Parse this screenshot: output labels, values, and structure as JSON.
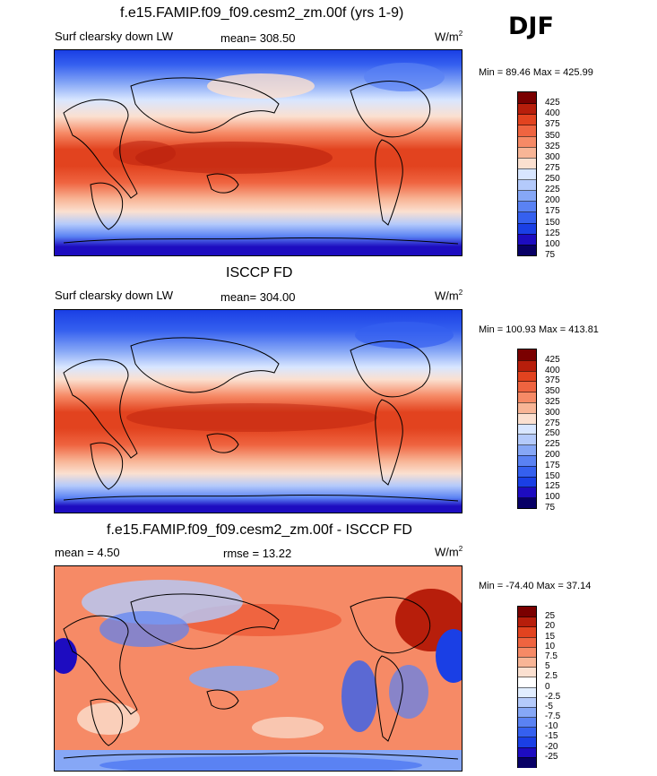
{
  "season": "DJF",
  "panels": [
    {
      "id": "model",
      "title": "f.e15.FAMIP.f09_f09.cesm2_zm.00f (yrs 1-9)",
      "variable": "Surf clearsky down LW",
      "stat_text": "mean= 308.50",
      "units": "W/m",
      "units_exp": "2",
      "minmax": "Min =  89.46 Max = 425.99",
      "colorbar_labels": [
        "425",
        "400",
        "375",
        "350",
        "325",
        "300",
        "275",
        "250",
        "225",
        "200",
        "175",
        "150",
        "125",
        "100",
        "75"
      ],
      "colors": [
        "#080066",
        "#1d0cc0",
        "#1a3fe5",
        "#3560ef",
        "#5a82f3",
        "#86a7f6",
        "#b4cafb",
        "#d8e6ff",
        "#fbe0d0",
        "#f8b596",
        "#f68a66",
        "#ef6440",
        "#e2431f",
        "#b71e0b",
        "#7a0000"
      ]
    },
    {
      "id": "obs",
      "title": "ISCCP FD",
      "variable": "Surf clearsky down LW",
      "stat_text": "mean= 304.00",
      "units": "W/m",
      "units_exp": "2",
      "minmax": "Min = 100.93 Max = 413.81",
      "colorbar_labels": [
        "425",
        "400",
        "375",
        "350",
        "325",
        "300",
        "275",
        "250",
        "225",
        "200",
        "175",
        "150",
        "125",
        "100",
        "75"
      ],
      "colors": [
        "#080066",
        "#1d0cc0",
        "#1a3fe5",
        "#3560ef",
        "#5a82f3",
        "#86a7f6",
        "#b4cafb",
        "#d8e6ff",
        "#fbe0d0",
        "#f8b596",
        "#f68a66",
        "#ef6440",
        "#e2431f",
        "#b71e0b",
        "#7a0000"
      ]
    },
    {
      "id": "diff",
      "title": "f.e15.FAMIP.f09_f09.cesm2_zm.00f - ISCCP FD",
      "stat_text": "mean =   4.50",
      "stat2_text": "rmse =  13.22",
      "units": "W/m",
      "units_exp": "2",
      "minmax": "Min = -74.40 Max =  37.14",
      "colorbar_labels": [
        "25",
        "20",
        "15",
        "10",
        "7.5",
        "5",
        "2.5",
        "0",
        "-2.5",
        "-5",
        "-7.5",
        "-10",
        "-15",
        "-20",
        "-25"
      ],
      "colors": [
        "#080066",
        "#1d0cc0",
        "#1a3fe5",
        "#3560ef",
        "#5a82f3",
        "#86a7f6",
        "#b4cafb",
        "#e1edff",
        "#ffffff",
        "#fbe0d0",
        "#f8b596",
        "#f68a66",
        "#ef6440",
        "#e2431f",
        "#b71e0b",
        "#7a0000"
      ]
    }
  ]
}
